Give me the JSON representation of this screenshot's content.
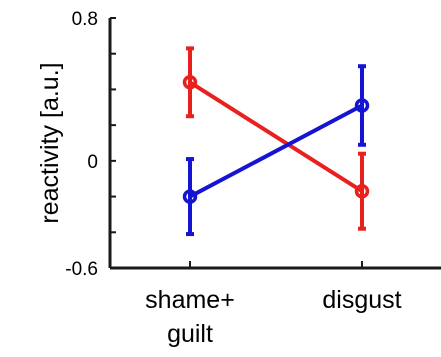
{
  "chart_data": {
    "type": "line",
    "categories": [
      "shame+\nguilt",
      "disgust"
    ],
    "ylabel": "reactivity [a.u.]",
    "xlabel": "",
    "ylim": [
      -0.6,
      0.8
    ],
    "yticks": [
      -0.6,
      0,
      0.8
    ],
    "ytick_labels": [
      "-0.6",
      "0",
      "0.8"
    ],
    "grid": false,
    "series": [
      {
        "color": "#e8201e",
        "values": [
          0.44,
          -0.17
        ],
        "error": [
          0.19,
          0.21
        ]
      },
      {
        "color": "#1414d2",
        "values": [
          -0.2,
          0.31
        ],
        "error": [
          0.21,
          0.22
        ]
      }
    ]
  }
}
